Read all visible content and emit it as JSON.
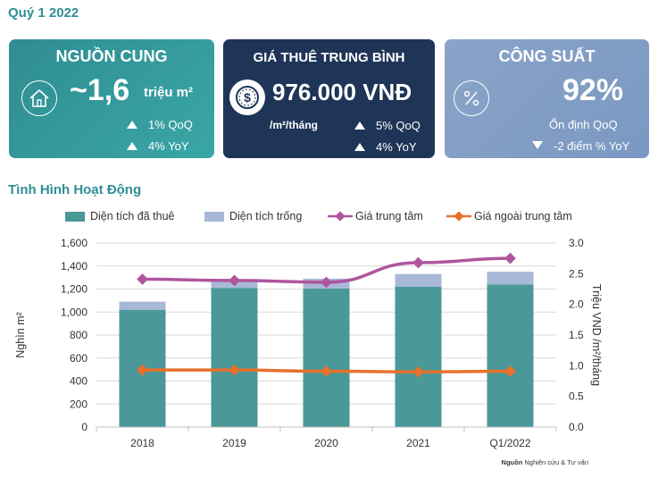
{
  "header": {
    "quarter": "Quý 1 2022"
  },
  "cards": {
    "supply": {
      "title": "NGUỒN CUNG",
      "value": "~1,6",
      "unit": "triệu m²",
      "qoq": "1% QoQ",
      "yoy": "4% YoY",
      "icon": "house-icon",
      "color": "#2f8d92"
    },
    "rent": {
      "title": "GIÁ THUÊ TRUNG BÌNH",
      "value": "976.000 VNĐ",
      "unit": "/m²/tháng",
      "qoq": "5% QoQ",
      "yoy": "4% YoY",
      "icon": "dollar-coin-icon",
      "color": "#1f3558"
    },
    "occupancy": {
      "title": "CÔNG SUẤT",
      "value": "92%",
      "status": "Ổn định QoQ",
      "yoy": "-2 điểm % YoY",
      "icon": "percent-icon",
      "color": "#7f9cc5"
    }
  },
  "section_title": "Tình Hình Hoạt Động",
  "source": {
    "label": "Nguồn",
    "text": "Nghiên cứu & Tư vấn"
  },
  "chart_data": {
    "type": "bar",
    "categories": [
      "2018",
      "2019",
      "2020",
      "2021",
      "Q1/2022"
    ],
    "series": [
      {
        "name": "Diện tích đã thuê",
        "type": "stacked-bar",
        "axis": "left",
        "color": "#4a9898",
        "values": [
          1020,
          1210,
          1205,
          1220,
          1240
        ]
      },
      {
        "name": "Diện tích trống",
        "type": "stacked-bar",
        "axis": "left",
        "color": "#a8b8d8",
        "values": [
          70,
          65,
          85,
          110,
          110
        ]
      },
      {
        "name": "Giá trung tâm",
        "type": "line",
        "axis": "right",
        "color": "#b0559e",
        "values": [
          2.41,
          2.39,
          2.36,
          2.68,
          2.75
        ]
      },
      {
        "name": "Giá ngoài trung tâm",
        "type": "line",
        "axis": "right",
        "color": "#e8702a",
        "values": [
          0.93,
          0.93,
          0.91,
          0.9,
          0.91
        ]
      }
    ],
    "ylabel": "Nghìn m²",
    "ylabel_right": "Triệu VND /m²/tháng",
    "ylim": [
      0,
      1600
    ],
    "ylim_right": [
      0,
      3.0
    ],
    "yticks": [
      "0",
      "200",
      "400",
      "600",
      "800",
      "1,000",
      "1,200",
      "1,400",
      "1,600"
    ],
    "yticks_right": [
      "0.0",
      "0.5",
      "1.0",
      "1.5",
      "2.0",
      "2.5",
      "3.0"
    ],
    "grid": true,
    "legend_position": "top"
  }
}
